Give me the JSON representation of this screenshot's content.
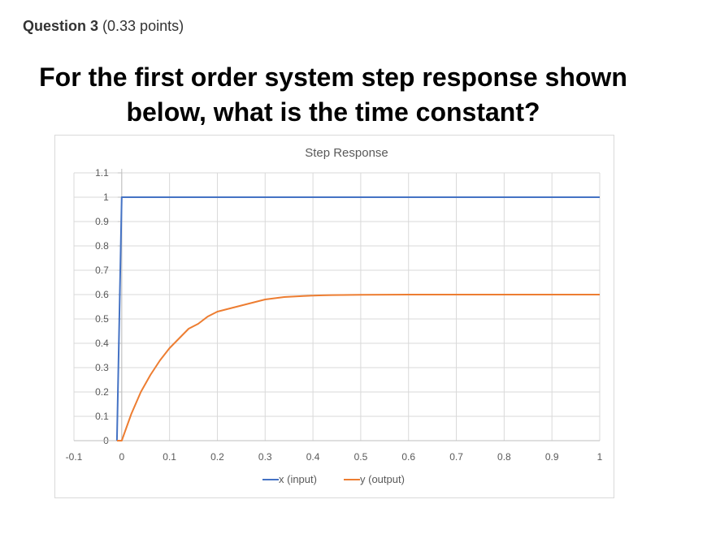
{
  "question": {
    "title": "Question 3",
    "points": "(0.33 points)",
    "prompt_line1": "For the first order system step response shown",
    "prompt_line2": "below, what is the time constant?"
  },
  "chart_data": {
    "type": "line",
    "title": "Step Response",
    "xlabel": "",
    "ylabel": "",
    "xlim": [
      -0.1,
      1
    ],
    "ylim": [
      0,
      1.1
    ],
    "x_ticks": [
      "-0.1",
      "0",
      "0.1",
      "0.2",
      "0.3",
      "0.4",
      "0.5",
      "0.6",
      "0.7",
      "0.8",
      "0.9",
      "1"
    ],
    "y_ticks": [
      "0",
      "0.1",
      "0.2",
      "0.3",
      "0.4",
      "0.5",
      "0.6",
      "0.7",
      "0.8",
      "0.9",
      "1",
      "1.1"
    ],
    "grid": true,
    "legend_position": "bottom",
    "series": [
      {
        "name": "x (input)",
        "color": "#4472C4",
        "points": [
          [
            -0.01,
            0
          ],
          [
            0,
            1
          ],
          [
            1,
            1
          ]
        ]
      },
      {
        "name": "y (output)",
        "color": "#ED7D31",
        "points": [
          [
            -0.01,
            0
          ],
          [
            0,
            0
          ],
          [
            0.02,
            0.11
          ],
          [
            0.04,
            0.2
          ],
          [
            0.06,
            0.27
          ],
          [
            0.08,
            0.33
          ],
          [
            0.1,
            0.38
          ],
          [
            0.12,
            0.42
          ],
          [
            0.14,
            0.46
          ],
          [
            0.16,
            0.48
          ],
          [
            0.18,
            0.51
          ],
          [
            0.2,
            0.53
          ],
          [
            0.22,
            0.54
          ],
          [
            0.24,
            0.55
          ],
          [
            0.26,
            0.56
          ],
          [
            0.28,
            0.57
          ],
          [
            0.3,
            0.58
          ],
          [
            0.32,
            0.585
          ],
          [
            0.34,
            0.59
          ],
          [
            0.36,
            0.592
          ],
          [
            0.38,
            0.594
          ],
          [
            0.4,
            0.596
          ],
          [
            0.42,
            0.597
          ],
          [
            0.44,
            0.598
          ],
          [
            0.5,
            0.599
          ],
          [
            0.6,
            0.6
          ],
          [
            0.7,
            0.6
          ],
          [
            0.8,
            0.6
          ],
          [
            0.9,
            0.6
          ],
          [
            1,
            0.6
          ]
        ]
      }
    ]
  }
}
